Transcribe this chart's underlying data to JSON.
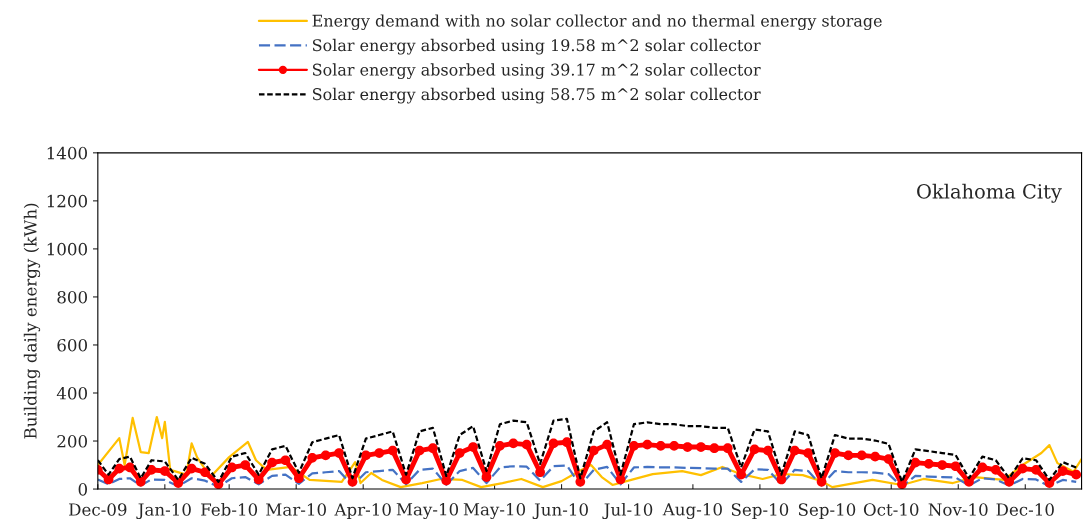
{
  "chart_data": {
    "type": "line",
    "ylabel": "Building daily energy (kWh)",
    "annotations": [
      "Oklahoma City"
    ],
    "xlim": [
      "2009-12-31",
      "2011-01-02"
    ],
    "ylim": [
      0,
      1400
    ],
    "yticks": [
      0,
      200,
      400,
      600,
      800,
      1000,
      1200,
      1400
    ],
    "xticks": [
      {
        "value": "2009-12-31",
        "label": "Dec-09"
      },
      {
        "value": "2010-01-25",
        "label": "Jan-10"
      },
      {
        "value": "2010-02-18",
        "label": "Feb-10"
      },
      {
        "value": "2010-03-15",
        "label": "Mar-10"
      },
      {
        "value": "2010-04-09",
        "label": "Apr-10"
      },
      {
        "value": "2010-05-03",
        "label": "May-10"
      },
      {
        "value": "2010-05-28",
        "label": "May-10"
      },
      {
        "value": "2010-06-22",
        "label": "Jun-10"
      },
      {
        "value": "2010-07-17",
        "label": "Jul-10"
      },
      {
        "value": "2010-08-10",
        "label": "Aug-10"
      },
      {
        "value": "2010-09-04",
        "label": "Sep-10"
      },
      {
        "value": "2010-09-29",
        "label": "Sep-10"
      },
      {
        "value": "2010-10-23",
        "label": "Oct-10"
      },
      {
        "value": "2010-11-17",
        "label": "Nov-10"
      },
      {
        "value": "2010-12-12",
        "label": "Dec-10"
      }
    ],
    "grid": false,
    "legend": "top",
    "x": [
      "2009-12-31",
      "2010-01-04",
      "2010-01-08",
      "2010-01-12",
      "2010-01-16",
      "2010-01-20",
      "2010-01-25",
      "2010-01-30",
      "2010-02-04",
      "2010-02-09",
      "2010-02-14",
      "2010-02-19",
      "2010-02-24",
      "2010-03-01",
      "2010-03-06",
      "2010-03-11",
      "2010-03-16",
      "2010-03-21",
      "2010-03-26",
      "2010-03-31",
      "2010-04-05",
      "2010-04-10",
      "2010-04-15",
      "2010-04-20",
      "2010-04-25",
      "2010-04-30",
      "2010-05-05",
      "2010-05-10",
      "2010-05-15",
      "2010-05-20",
      "2010-05-25",
      "2010-05-30",
      "2010-06-04",
      "2010-06-09",
      "2010-06-14",
      "2010-06-19",
      "2010-06-24",
      "2010-06-29",
      "2010-07-04",
      "2010-07-09",
      "2010-07-14",
      "2010-07-19",
      "2010-07-24",
      "2010-07-29",
      "2010-08-03",
      "2010-08-08",
      "2010-08-13",
      "2010-08-18",
      "2010-08-23",
      "2010-08-28",
      "2010-09-02",
      "2010-09-07",
      "2010-09-12",
      "2010-09-17",
      "2010-09-22",
      "2010-09-27",
      "2010-10-02",
      "2010-10-07",
      "2010-10-12",
      "2010-10-17",
      "2010-10-22",
      "2010-10-27",
      "2010-11-01",
      "2010-11-06",
      "2010-11-11",
      "2010-11-16",
      "2010-11-21",
      "2010-11-26",
      "2010-12-01",
      "2010-12-06",
      "2010-12-11",
      "2010-12-16",
      "2010-12-21",
      "2010-12-26",
      "2010-12-31"
    ],
    "series": [
      {
        "name": "Energy demand with no solar collector and no thermal energy storage",
        "color": "#ffc000",
        "line_style": "solid",
        "marker": "none",
        "x": [
          "2009-12-31",
          "2010-01-08",
          "2010-01-10",
          "2010-01-13",
          "2010-01-16",
          "2010-01-19",
          "2010-01-22",
          "2010-01-24",
          "2010-01-25",
          "2010-01-27",
          "2010-02-02",
          "2010-02-04",
          "2010-02-06",
          "2010-02-11",
          "2010-02-18",
          "2010-02-25",
          "2010-02-28",
          "2010-03-04",
          "2010-03-13",
          "2010-03-20",
          "2010-04-01",
          "2010-04-06",
          "2010-04-08",
          "2010-04-12",
          "2010-04-16",
          "2010-04-23",
          "2010-05-01",
          "2010-05-08",
          "2010-05-16",
          "2010-05-23",
          "2010-05-31",
          "2010-06-07",
          "2010-06-15",
          "2010-06-22",
          "2010-06-28",
          "2010-07-03",
          "2010-07-07",
          "2010-07-11",
          "2010-07-18",
          "2010-07-26",
          "2010-08-06",
          "2010-08-13",
          "2010-08-21",
          "2010-08-28",
          "2010-09-05",
          "2010-09-12",
          "2010-09-20",
          "2010-09-27",
          "2010-10-01",
          "2010-10-16",
          "2010-10-27",
          "2010-11-04",
          "2010-11-15",
          "2010-11-23",
          "2010-12-04",
          "2010-12-11",
          "2010-12-18",
          "2010-12-21",
          "2010-12-24",
          "2010-12-30",
          "2011-01-02"
        ],
        "values": [
          100,
          212,
          100,
          296,
          154,
          150,
          300,
          212,
          280,
          80,
          60,
          190,
          133,
          50,
          133,
          196,
          120,
          80,
          92,
          38,
          30,
          112,
          25,
          67,
          38,
          8,
          25,
          42,
          38,
          8,
          25,
          42,
          8,
          33,
          71,
          100,
          50,
          17,
          38,
          62,
          75,
          58,
          92,
          62,
          42,
          62,
          58,
          33,
          8,
          38,
          17,
          42,
          25,
          50,
          38,
          100,
          150,
          183,
          108,
          72,
          125
        ]
      },
      {
        "name": "Solar energy absorbed using 19.58 m^2 solar collector",
        "color": "#4472c4",
        "line_style": "dashed",
        "marker": "none",
        "values": [
          40,
          20,
          42,
          45,
          15,
          40,
          38,
          12,
          45,
          35,
          10,
          45,
          50,
          20,
          55,
          60,
          22,
          65,
          70,
          75,
          15,
          70,
          75,
          80,
          20,
          80,
          85,
          18,
          75,
          88,
          25,
          90,
          95,
          93,
          35,
          95,
          98,
          15,
          80,
          92,
          20,
          90,
          92,
          90,
          90,
          88,
          87,
          85,
          85,
          30,
          82,
          80,
          20,
          80,
          75,
          15,
          75,
          70,
          70,
          68,
          62,
          10,
          55,
          52,
          50,
          48,
          15,
          45,
          40,
          15,
          42,
          40,
          12,
          38,
          30
        ]
      },
      {
        "name": "Solar energy absorbed using 39.17 m^2 solar collector",
        "color": "#ff0000",
        "line_style": "solid",
        "marker": "circle",
        "values": [
          80,
          40,
          85,
          90,
          30,
          80,
          75,
          25,
          85,
          70,
          20,
          90,
          100,
          40,
          110,
          120,
          45,
          130,
          140,
          150,
          30,
          140,
          150,
          160,
          40,
          160,
          170,
          35,
          150,
          175,
          50,
          180,
          190,
          185,
          70,
          190,
          195,
          30,
          160,
          185,
          40,
          180,
          185,
          180,
          180,
          175,
          175,
          170,
          170,
          60,
          165,
          160,
          40,
          160,
          150,
          30,
          150,
          140,
          140,
          135,
          125,
          20,
          110,
          105,
          100,
          95,
          30,
          90,
          80,
          30,
          85,
          80,
          25,
          75,
          60
        ]
      },
      {
        "name": "Solar energy absorbed using 58.75 m^2 solar collector",
        "color": "#000000",
        "line_style": "dotted",
        "marker": "none",
        "values": [
          120,
          60,
          125,
          135,
          45,
          120,
          115,
          38,
          130,
          105,
          30,
          135,
          150,
          60,
          165,
          180,
          68,
          195,
          210,
          225,
          45,
          210,
          225,
          240,
          60,
          240,
          255,
          55,
          225,
          262,
          75,
          270,
          285,
          278,
          105,
          285,
          292,
          45,
          240,
          278,
          60,
          270,
          278,
          270,
          270,
          262,
          262,
          255,
          255,
          90,
          248,
          240,
          60,
          240,
          225,
          45,
          225,
          210,
          210,
          202,
          188,
          30,
          165,
          158,
          150,
          142,
          45,
          135,
          120,
          45,
          128,
          120,
          38,
          112,
          90
        ]
      }
    ]
  }
}
